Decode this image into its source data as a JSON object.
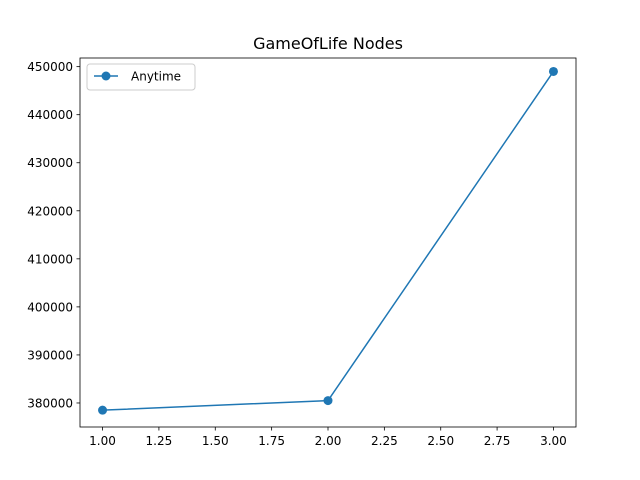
{
  "chart_data": {
    "type": "line",
    "title": "GameOfLife Nodes",
    "xlabel": "",
    "ylabel": "",
    "xlim": [
      0.9,
      3.1
    ],
    "ylim": [
      375000,
      451800
    ],
    "x_ticks": [
      "1.00",
      "1.25",
      "1.50",
      "1.75",
      "2.00",
      "2.25",
      "2.50",
      "2.75",
      "3.00"
    ],
    "y_ticks": [
      "380000",
      "390000",
      "400000",
      "410000",
      "420000",
      "430000",
      "440000",
      "450000"
    ],
    "grid": false,
    "legend_position": "top-left",
    "series": [
      {
        "name": "Anytime",
        "color": "#1f77b4",
        "marker": "circle",
        "x": [
          1,
          2,
          3
        ],
        "y": [
          378500,
          380500,
          449000
        ]
      }
    ]
  }
}
